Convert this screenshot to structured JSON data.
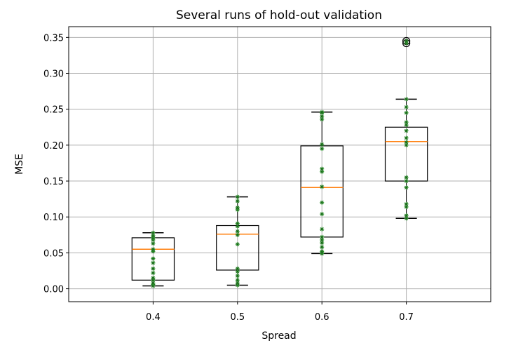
{
  "chart_data": {
    "type": "box",
    "title": "Several runs of hold-out validation",
    "xlabel": "Spread",
    "ylabel": "MSE",
    "ylim": [
      -0.018,
      0.365
    ],
    "xlim": [
      0.3,
      0.8
    ],
    "grid": true,
    "yticks": [
      0.0,
      0.05,
      0.1,
      0.15,
      0.2,
      0.25,
      0.3,
      0.35
    ],
    "ytick_labels": [
      "0.00",
      "0.05",
      "0.10",
      "0.15",
      "0.20",
      "0.25",
      "0.30",
      "0.35"
    ],
    "categories": [
      "0.4",
      "0.5",
      "0.6",
      "0.7"
    ],
    "positions": [
      0.4,
      0.5,
      0.6,
      0.7
    ],
    "box_color": "#000000",
    "median_color": "#ff7f0e",
    "point_color": "#2ca02c",
    "point_edge_color": "#1a5e1a",
    "boxes": [
      {
        "category": "0.4",
        "whislo": 0.004,
        "q1": 0.012,
        "median": 0.055,
        "q3": 0.071,
        "whishi": 0.078,
        "fliers": []
      },
      {
        "category": "0.5",
        "whislo": 0.005,
        "q1": 0.026,
        "median": 0.076,
        "q3": 0.088,
        "whishi": 0.128,
        "fliers": []
      },
      {
        "category": "0.6",
        "whislo": 0.049,
        "q1": 0.072,
        "median": 0.141,
        "q3": 0.199,
        "whishi": 0.246,
        "fliers": []
      },
      {
        "category": "0.7",
        "whislo": 0.098,
        "q1": 0.15,
        "median": 0.205,
        "q3": 0.225,
        "whishi": 0.264,
        "fliers": [
          0.342,
          0.345
        ]
      }
    ],
    "points": [
      {
        "category": "0.4",
        "values": [
          0.004,
          0.006,
          0.008,
          0.012,
          0.015,
          0.022,
          0.028,
          0.036,
          0.042,
          0.052,
          0.055,
          0.063,
          0.068,
          0.071,
          0.074,
          0.078
        ]
      },
      {
        "category": "0.5",
        "values": [
          0.005,
          0.008,
          0.012,
          0.018,
          0.024,
          0.028,
          0.062,
          0.075,
          0.08,
          0.087,
          0.091,
          0.11,
          0.113,
          0.122,
          0.128
        ]
      },
      {
        "category": "0.6",
        "values": [
          0.049,
          0.052,
          0.058,
          0.064,
          0.068,
          0.072,
          0.083,
          0.104,
          0.12,
          0.142,
          0.163,
          0.167,
          0.195,
          0.201,
          0.236,
          0.24,
          0.245,
          0.246
        ]
      },
      {
        "category": "0.7",
        "values": [
          0.098,
          0.102,
          0.114,
          0.118,
          0.141,
          0.15,
          0.155,
          0.2,
          0.204,
          0.21,
          0.22,
          0.228,
          0.232,
          0.245,
          0.253,
          0.264,
          0.342,
          0.345
        ]
      }
    ]
  }
}
